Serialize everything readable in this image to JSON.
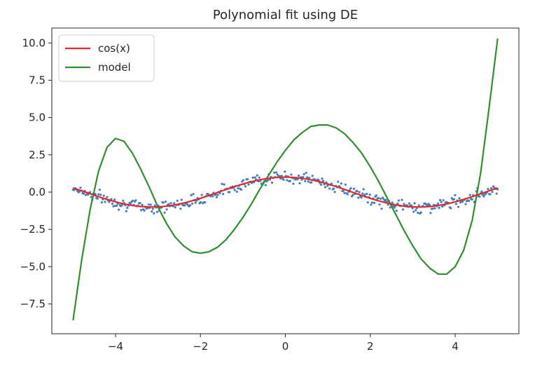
{
  "chart_data": {
    "type": "line",
    "title": "Polynomial fit using DE",
    "xlabel": "",
    "ylabel": "",
    "xlim": [
      -5.5,
      5.5
    ],
    "ylim": [
      -9.5,
      11.0
    ],
    "xticks": [
      -4,
      -2,
      0,
      2,
      4
    ],
    "yticks": [
      -7.5,
      -5.0,
      -2.5,
      0.0,
      2.5,
      5.0,
      7.5,
      10.0
    ],
    "xtick_labels": [
      "−4",
      "−2",
      "0",
      "2",
      "4"
    ],
    "ytick_labels": [
      "−7.5",
      "−5.0",
      "−2.5",
      "0.0",
      "2.5",
      "5.0",
      "7.5",
      "10.0"
    ],
    "grid": false,
    "legend_position": "top-left",
    "colors": {
      "cos": "#e8262a",
      "model": "#2d8f2d",
      "noisy": "#3f7fbf",
      "axes": "#262626"
    },
    "series": [
      {
        "name": "cos(x)",
        "kind": "line",
        "color": "#e8262a",
        "x": [
          -5.0,
          -4.5,
          -4.0,
          -3.5,
          -3.0,
          -2.5,
          -2.0,
          -1.5,
          -1.0,
          -0.5,
          0.0,
          0.5,
          1.0,
          1.5,
          2.0,
          2.5,
          3.0,
          3.5,
          4.0,
          4.5,
          5.0
        ],
        "y": [
          0.28,
          -0.21,
          -0.65,
          -0.94,
          -0.99,
          -0.8,
          -0.42,
          0.07,
          0.54,
          0.88,
          1.0,
          0.88,
          0.54,
          0.07,
          -0.42,
          -0.8,
          -0.99,
          -0.94,
          -0.65,
          -0.21,
          0.28
        ]
      },
      {
        "name": "model",
        "kind": "line",
        "color": "#2d8f2d",
        "x": [
          -5.0,
          -4.8,
          -4.6,
          -4.4,
          -4.2,
          -4.0,
          -3.8,
          -3.6,
          -3.4,
          -3.2,
          -3.0,
          -2.8,
          -2.6,
          -2.4,
          -2.2,
          -2.0,
          -1.8,
          -1.6,
          -1.4,
          -1.2,
          -1.0,
          -0.8,
          -0.6,
          -0.4,
          -0.2,
          0.0,
          0.2,
          0.4,
          0.6,
          0.8,
          1.0,
          1.2,
          1.4,
          1.6,
          1.8,
          2.0,
          2.2,
          2.4,
          2.6,
          2.8,
          3.0,
          3.2,
          3.4,
          3.6,
          3.8,
          4.0,
          4.2,
          4.4,
          4.6,
          4.8,
          5.0
        ],
        "y": [
          -8.6,
          -4.6,
          -1.2,
          1.4,
          3.0,
          3.6,
          3.4,
          2.6,
          1.5,
          0.3,
          -1.0,
          -2.1,
          -3.0,
          -3.6,
          -4.0,
          -4.1,
          -4.0,
          -3.7,
          -3.2,
          -2.5,
          -1.7,
          -0.8,
          0.2,
          1.1,
          2.0,
          2.8,
          3.5,
          4.0,
          4.4,
          4.5,
          4.5,
          4.3,
          3.9,
          3.3,
          2.6,
          1.7,
          0.7,
          -0.4,
          -1.5,
          -2.6,
          -3.6,
          -4.5,
          -5.1,
          -5.5,
          -5.5,
          -5.0,
          -3.9,
          -1.9,
          1.3,
          5.7,
          10.3
        ]
      }
    ],
    "scatter": {
      "name": "",
      "kind": "scatter",
      "color": "#3f7fbf",
      "note_noise_amplitude": 0.28,
      "x_range": [
        -5.0,
        5.0
      ],
      "count": 400
    },
    "legend": [
      {
        "label": "cos(x)",
        "color": "#e8262a"
      },
      {
        "label": "model",
        "color": "#2d8f2d"
      }
    ]
  }
}
